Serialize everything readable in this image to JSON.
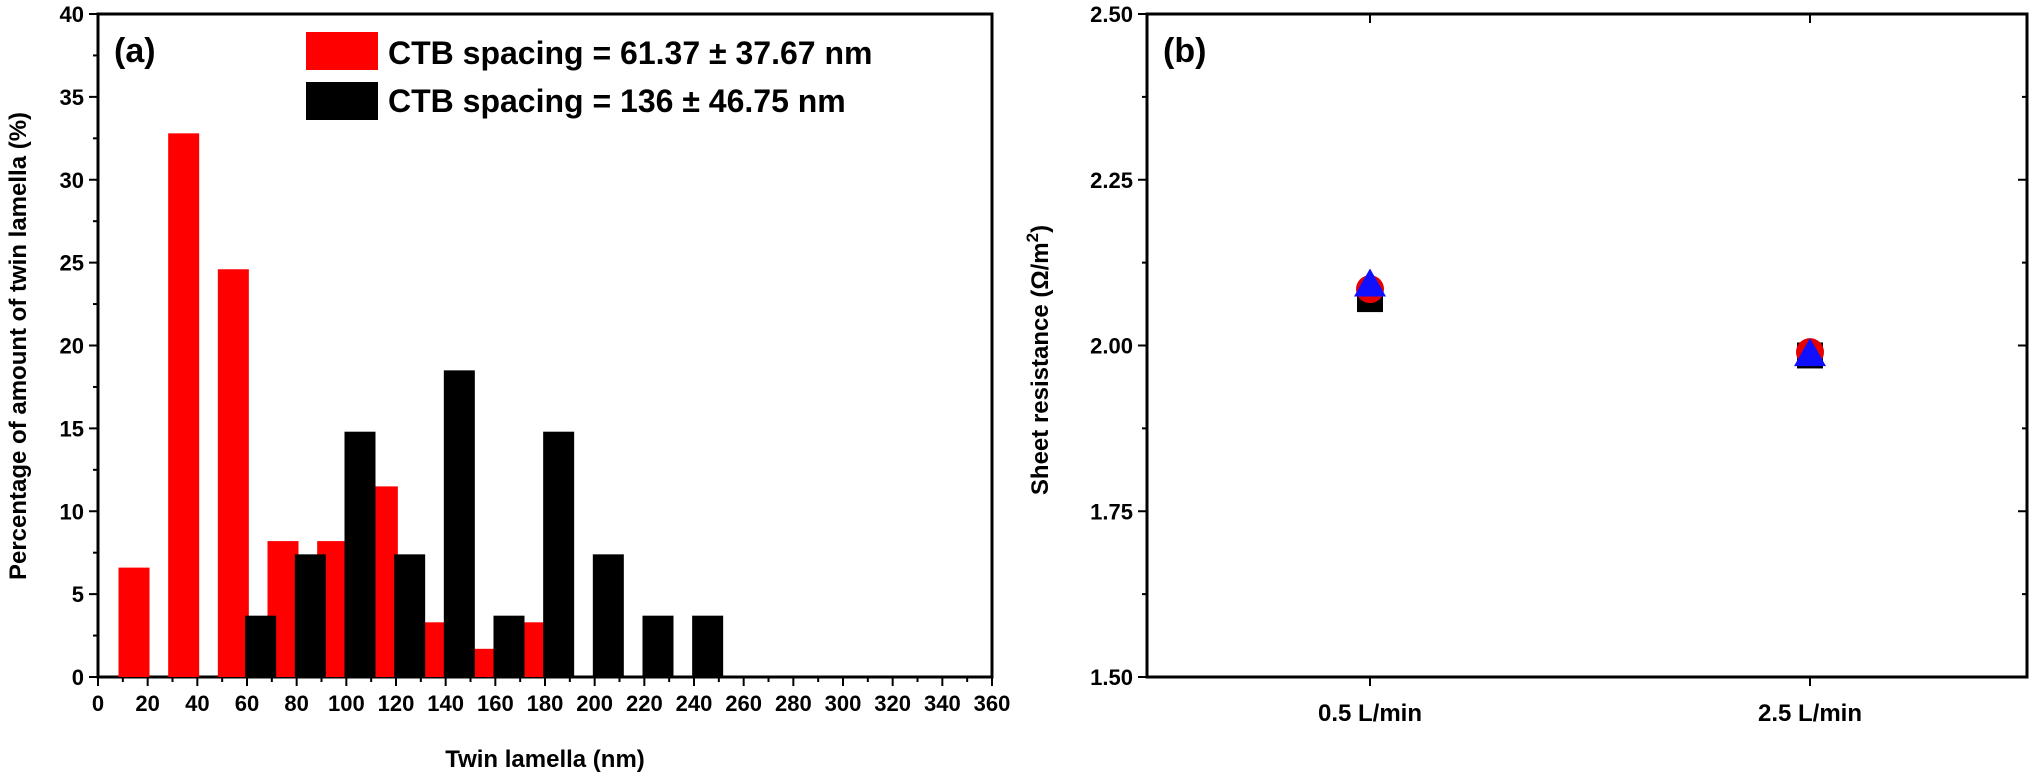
{
  "colors": {
    "series_red": "#ff0000",
    "series_black": "#000000",
    "marker_red": "#e60000",
    "marker_blue": "#1010ff",
    "axis": "#000000"
  },
  "chart_data": [
    {
      "type": "bar",
      "panel_label": "(a)",
      "xlabel": "Twin lamella (nm)",
      "ylabel": "Percentage of amount of twin lamella (%)",
      "xlim": [
        0,
        360
      ],
      "ylim": [
        0,
        40
      ],
      "x_ticks": [
        "0",
        "20",
        "40",
        "60",
        "80",
        "100",
        "120",
        "140",
        "160",
        "180",
        "200",
        "220",
        "240",
        "260",
        "280",
        "300",
        "320",
        "340",
        "360"
      ],
      "y_ticks": [
        "0",
        "5",
        "10",
        "15",
        "20",
        "25",
        "30",
        "35",
        "40"
      ],
      "legend_position": "top-right",
      "series": [
        {
          "name": "CTB spacing = 61.37 ± 37.67 nm",
          "color": "#ff0000",
          "x": [
            20,
            40,
            60,
            80,
            100,
            120,
            140,
            160,
            180
          ],
          "values": [
            6.6,
            32.8,
            24.6,
            8.2,
            8.2,
            11.5,
            3.3,
            1.7,
            3.3
          ]
        },
        {
          "name": "CTB spacing = 136 ± 46.75 nm",
          "color": "#000000",
          "x": [
            60,
            80,
            100,
            120,
            140,
            160,
            180,
            200,
            220,
            240
          ],
          "values": [
            3.7,
            7.4,
            14.8,
            7.4,
            18.5,
            3.7,
            14.8,
            7.4,
            3.7,
            3.7
          ]
        }
      ]
    },
    {
      "type": "scatter",
      "panel_label": "(b)",
      "xlabel": "",
      "ylabel_main": "Sheet resistance (Ω/m",
      "ylabel_sup": "2",
      "ylabel_close": ")",
      "categories": [
        "0.5 L/min",
        "2.5 L/min"
      ],
      "ylim": [
        1.5,
        2.5
      ],
      "y_ticks": [
        "1.50",
        "1.75",
        "2.00",
        "2.25",
        "2.50"
      ],
      "series": [
        {
          "marker": "square",
          "color": "#000000",
          "values": [
            2.07,
            1.985
          ]
        },
        {
          "marker": "circle",
          "color": "#e60000",
          "values": [
            2.085,
            1.99
          ]
        },
        {
          "marker": "triangle",
          "color": "#1010ff",
          "values": [
            2.095,
            1.99
          ]
        }
      ]
    }
  ]
}
